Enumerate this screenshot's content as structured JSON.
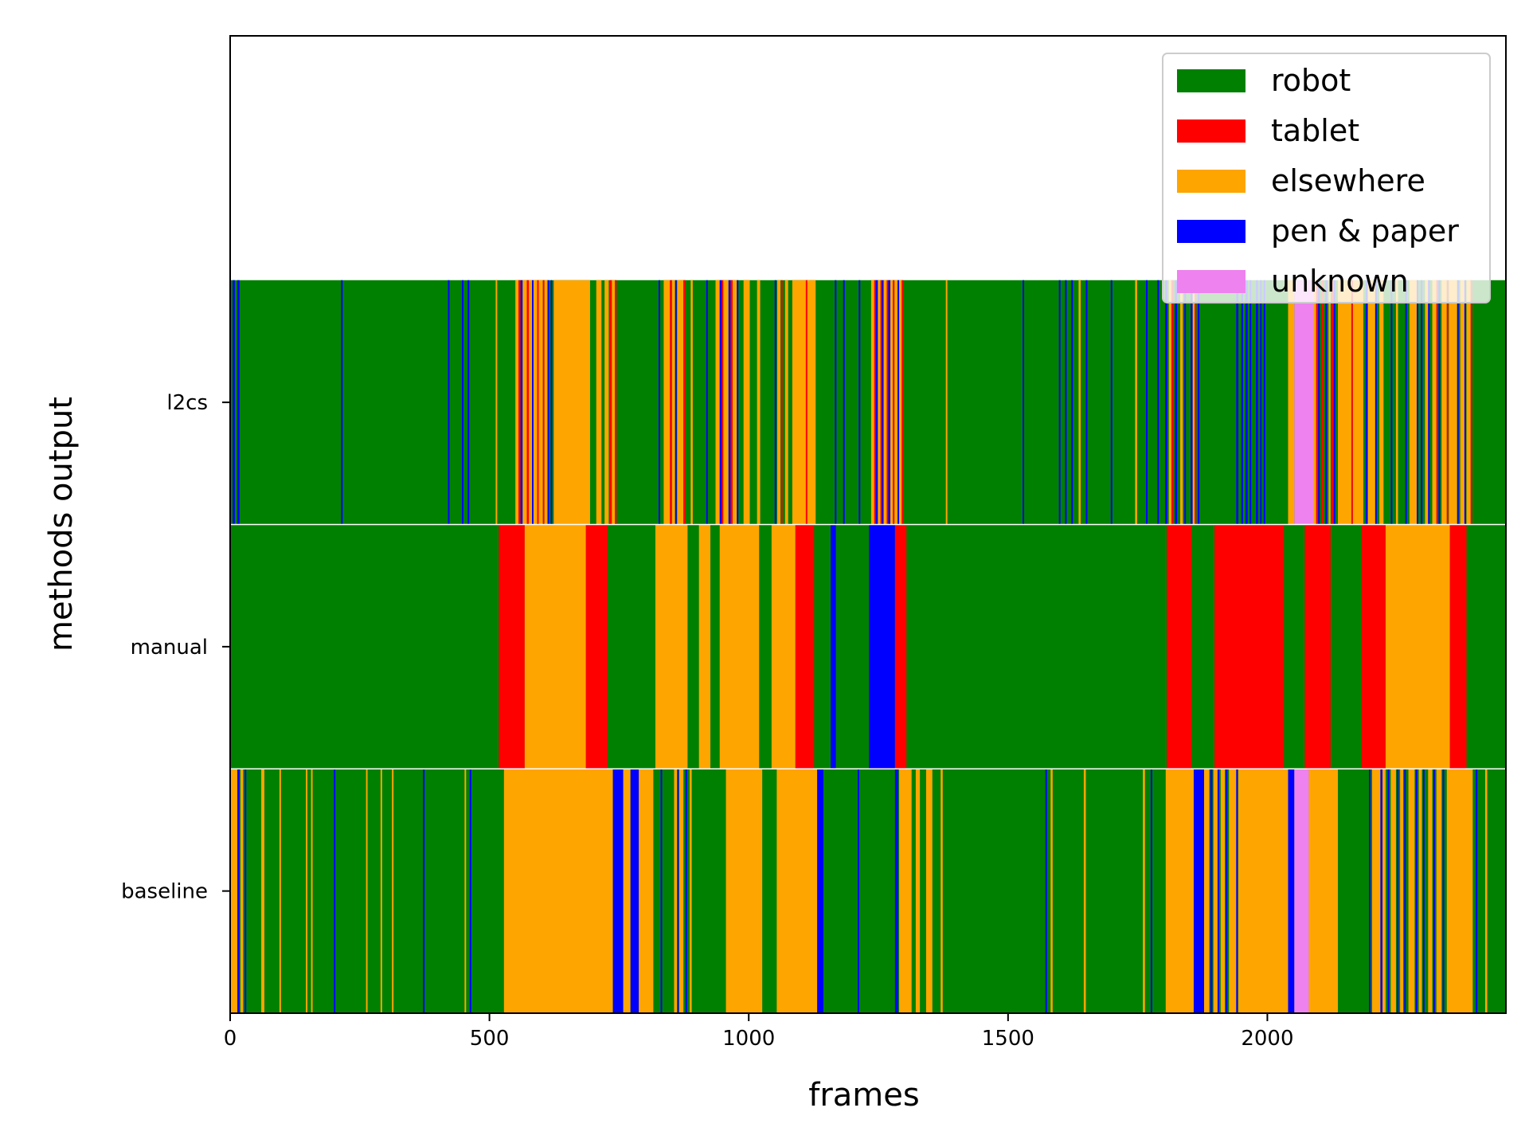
{
  "chart_data": {
    "type": "broken_barh",
    "xlabel": "frames",
    "ylabel": "methods output",
    "xlim": [
      0,
      2460
    ],
    "x_ticks": [
      0,
      500,
      1000,
      1500,
      2000
    ],
    "rows": [
      "l2cs",
      "manual",
      "baseline"
    ],
    "colors": {
      "robot": "#008000",
      "tablet": "#ff0000",
      "elsewhere": "#ffa500",
      "pen & paper": "#0000ff",
      "unknown": "#ee82ee"
    },
    "legend": {
      "position": "upper right",
      "entries": [
        "robot",
        "tablet",
        "elsewhere",
        "pen & paper",
        "unknown"
      ]
    },
    "series": [
      {
        "name": "l2cs",
        "base": "robot",
        "segments": [
          [
            "pen & paper",
            5,
            4
          ],
          [
            "pen & paper",
            14,
            4
          ],
          [
            "pen & paper",
            214,
            3
          ],
          [
            "pen & paper",
            420,
            3
          ],
          [
            "pen & paper",
            447,
            3
          ],
          [
            "pen & paper",
            458,
            3
          ],
          [
            "elsewhere",
            512,
            3
          ],
          [
            "elsewhere",
            550,
            6
          ],
          [
            "tablet",
            556,
            4
          ],
          [
            "pen & paper",
            560,
            4
          ],
          [
            "elsewhere",
            564,
            8
          ],
          [
            "tablet",
            572,
            4
          ],
          [
            "elsewhere",
            576,
            6
          ],
          [
            "pen & paper",
            582,
            3
          ],
          [
            "elsewhere",
            585,
            7
          ],
          [
            "tablet",
            592,
            3
          ],
          [
            "elsewhere",
            595,
            8
          ],
          [
            "tablet",
            603,
            3
          ],
          [
            "elsewhere",
            606,
            6
          ],
          [
            "pen & paper",
            612,
            3
          ],
          [
            "pen & paper",
            618,
            3
          ],
          [
            "elsewhere",
            624,
            70
          ],
          [
            "elsewhere",
            706,
            10
          ],
          [
            "elsewhere",
            722,
            8
          ],
          [
            "tablet",
            732,
            4
          ],
          [
            "elsewhere",
            736,
            6
          ],
          [
            "tablet",
            742,
            3
          ],
          [
            "pen & paper",
            826,
            3
          ],
          [
            "elsewhere",
            836,
            12
          ],
          [
            "tablet",
            848,
            4
          ],
          [
            "elsewhere",
            852,
            6
          ],
          [
            "pen & paper",
            858,
            3
          ],
          [
            "elsewhere",
            862,
            12
          ],
          [
            "tablet",
            874,
            4
          ],
          [
            "elsewhere",
            888,
            4
          ],
          [
            "pen & paper",
            918,
            3
          ],
          [
            "elsewhere",
            936,
            8
          ],
          [
            "pen & paper",
            944,
            4
          ],
          [
            "tablet",
            948,
            3
          ],
          [
            "elsewhere",
            951,
            10
          ],
          [
            "pen & paper",
            961,
            4
          ],
          [
            "tablet",
            965,
            4
          ],
          [
            "elsewhere",
            969,
            8
          ],
          [
            "pen & paper",
            977,
            3
          ],
          [
            "elsewhere",
            990,
            12
          ],
          [
            "elsewhere",
            1016,
            6
          ],
          [
            "pen & paper",
            1050,
            3
          ],
          [
            "elsewhere",
            1055,
            6
          ],
          [
            "tablet",
            1062,
            3
          ],
          [
            "elsewhere",
            1070,
            6
          ],
          [
            "elsewhere",
            1084,
            45
          ],
          [
            "tablet",
            1110,
            3
          ],
          [
            "pen & paper",
            1166,
            3
          ],
          [
            "pen & paper",
            1182,
            3
          ],
          [
            "pen & paper",
            1212,
            3
          ],
          [
            "elsewhere",
            1236,
            6
          ],
          [
            "tablet",
            1242,
            3
          ],
          [
            "pen & paper",
            1245,
            4
          ],
          [
            "elsewhere",
            1249,
            5
          ],
          [
            "tablet",
            1254,
            3
          ],
          [
            "pen & paper",
            1257,
            3
          ],
          [
            "elsewhere",
            1260,
            6
          ],
          [
            "tablet",
            1266,
            3
          ],
          [
            "pen & paper",
            1269,
            4
          ],
          [
            "elsewhere",
            1273,
            5
          ],
          [
            "tablet",
            1278,
            3
          ],
          [
            "elsewhere",
            1281,
            6
          ],
          [
            "pen & paper",
            1287,
            3
          ],
          [
            "elsewhere",
            1290,
            5
          ],
          [
            "tablet",
            1295,
            3
          ],
          [
            "elsewhere",
            1380,
            3
          ],
          [
            "pen & paper",
            1528,
            3
          ],
          [
            "pen & paper",
            1598,
            3
          ],
          [
            "pen & paper",
            1610,
            3
          ],
          [
            "pen & paper",
            1622,
            3
          ],
          [
            "elsewhere",
            1636,
            4
          ],
          [
            "pen & paper",
            1650,
            3
          ],
          [
            "pen & paper",
            1698,
            3
          ],
          [
            "elsewhere",
            1745,
            4
          ],
          [
            "pen & paper",
            1766,
            3
          ],
          [
            "pen & paper",
            1788,
            3
          ],
          [
            "pen & paper",
            1803,
            4
          ],
          [
            "elsewhere",
            1810,
            5
          ],
          [
            "tablet",
            1815,
            3
          ],
          [
            "pen & paper",
            1822,
            4
          ],
          [
            "elsewhere",
            1832,
            5
          ],
          [
            "pen & paper",
            1840,
            3
          ],
          [
            "pen & paper",
            1852,
            4
          ],
          [
            "elsewhere",
            1856,
            4
          ],
          [
            "tablet",
            1860,
            3
          ],
          [
            "pen & paper",
            1866,
            3
          ],
          [
            "pen & paper",
            1940,
            4
          ],
          [
            "pen & paper",
            1950,
            3
          ],
          [
            "pen & paper",
            1958,
            4
          ],
          [
            "pen & paper",
            1966,
            3
          ],
          [
            "pen & paper",
            1978,
            4
          ],
          [
            "pen & paper",
            1986,
            3
          ],
          [
            "pen & paper",
            1993,
            3
          ],
          [
            "elsewhere",
            2040,
            12
          ],
          [
            "unknown",
            2052,
            38
          ],
          [
            "elsewhere",
            2090,
            4
          ],
          [
            "tablet",
            2094,
            4
          ],
          [
            "pen & paper",
            2098,
            3
          ],
          [
            "tablet",
            2104,
            4
          ],
          [
            "pen & paper",
            2112,
            3
          ],
          [
            "elsewhere",
            2118,
            4
          ],
          [
            "tablet",
            2124,
            3
          ],
          [
            "pen & paper",
            2128,
            3
          ],
          [
            "elsewhere",
            2136,
            26
          ],
          [
            "tablet",
            2162,
            3
          ],
          [
            "elsewhere",
            2165,
            20
          ],
          [
            "pen & paper",
            2190,
            3
          ],
          [
            "elsewhere",
            2194,
            14
          ],
          [
            "pen & paper",
            2208,
            3
          ],
          [
            "elsewhere",
            2216,
            8
          ],
          [
            "pen & paper",
            2238,
            3
          ],
          [
            "elsewhere",
            2248,
            4
          ],
          [
            "pen & paper",
            2266,
            3
          ],
          [
            "elsewhere",
            2274,
            14
          ],
          [
            "pen & paper",
            2288,
            3
          ],
          [
            "pen & paper",
            2296,
            3
          ],
          [
            "elsewhere",
            2304,
            6
          ],
          [
            "pen & paper",
            2310,
            3
          ],
          [
            "elsewhere",
            2318,
            8
          ],
          [
            "tablet",
            2326,
            3
          ],
          [
            "pen & paper",
            2330,
            3
          ],
          [
            "elsewhere",
            2336,
            10
          ],
          [
            "tablet",
            2346,
            3
          ],
          [
            "elsewhere",
            2350,
            16
          ],
          [
            "pen & paper",
            2366,
            3
          ],
          [
            "elsewhere",
            2372,
            8
          ],
          [
            "pen & paper",
            2380,
            3
          ],
          [
            "elsewhere",
            2384,
            8
          ],
          [
            "tablet",
            2392,
            3
          ]
        ]
      },
      {
        "name": "manual",
        "base": "robot",
        "segments": [
          [
            "tablet",
            518,
            50
          ],
          [
            "elsewhere",
            568,
            118
          ],
          [
            "tablet",
            686,
            42
          ],
          [
            "elsewhere",
            820,
            62
          ],
          [
            "elsewhere",
            904,
            22
          ],
          [
            "elsewhere",
            944,
            76
          ],
          [
            "elsewhere",
            1044,
            46
          ],
          [
            "tablet",
            1090,
            36
          ],
          [
            "pen & paper",
            1158,
            10
          ],
          [
            "pen & paper",
            1232,
            50
          ],
          [
            "tablet",
            1282,
            22
          ],
          [
            "tablet",
            1806,
            48
          ],
          [
            "tablet",
            1898,
            134
          ],
          [
            "tablet",
            2072,
            50
          ],
          [
            "tablet",
            2182,
            46
          ],
          [
            "elsewhere",
            2228,
            124
          ],
          [
            "tablet",
            2352,
            32
          ]
        ]
      },
      {
        "name": "baseline",
        "base": "robot",
        "segments": [
          [
            "elsewhere",
            0,
            14
          ],
          [
            "pen & paper",
            14,
            4
          ],
          [
            "elsewhere",
            20,
            5
          ],
          [
            "pen & paper",
            28,
            3
          ],
          [
            "elsewhere",
            60,
            6
          ],
          [
            "elsewhere",
            95,
            3
          ],
          [
            "elsewhere",
            146,
            3
          ],
          [
            "elsewhere",
            156,
            3
          ],
          [
            "pen & paper",
            200,
            3
          ],
          [
            "elsewhere",
            262,
            3
          ],
          [
            "elsewhere",
            290,
            3
          ],
          [
            "elsewhere",
            312,
            3
          ],
          [
            "pen & paper",
            372,
            3
          ],
          [
            "elsewhere",
            452,
            3
          ],
          [
            "pen & paper",
            462,
            3
          ],
          [
            "elsewhere",
            528,
            210
          ],
          [
            "pen & paper",
            738,
            20
          ],
          [
            "elsewhere",
            758,
            14
          ],
          [
            "pen & paper",
            772,
            16
          ],
          [
            "elsewhere",
            788,
            28
          ],
          [
            "pen & paper",
            830,
            3
          ],
          [
            "elsewhere",
            856,
            6
          ],
          [
            "pen & paper",
            862,
            3
          ],
          [
            "elsewhere",
            866,
            8
          ],
          [
            "pen & paper",
            878,
            3
          ],
          [
            "elsewhere",
            886,
            4
          ],
          [
            "elsewhere",
            956,
            70
          ],
          [
            "elsewhere",
            1054,
            78
          ],
          [
            "pen & paper",
            1132,
            12
          ],
          [
            "pen & paper",
            1210,
            3
          ],
          [
            "pen & paper",
            1282,
            6
          ],
          [
            "elsewhere",
            1290,
            24
          ],
          [
            "elsewhere",
            1322,
            8
          ],
          [
            "elsewhere",
            1342,
            12
          ],
          [
            "elsewhere",
            1370,
            4
          ],
          [
            "pen & paper",
            1572,
            3
          ],
          [
            "elsewhere",
            1582,
            4
          ],
          [
            "elsewhere",
            1646,
            4
          ],
          [
            "elsewhere",
            1760,
            4
          ],
          [
            "pen & paper",
            1775,
            3
          ],
          [
            "elsewhere",
            1804,
            54
          ],
          [
            "pen & paper",
            1858,
            20
          ],
          [
            "elsewhere",
            1878,
            10
          ],
          [
            "pen & paper",
            1890,
            4
          ],
          [
            "elsewhere",
            1896,
            8
          ],
          [
            "pen & paper",
            1904,
            3
          ],
          [
            "elsewhere",
            1910,
            8
          ],
          [
            "pen & paper",
            1920,
            3
          ],
          [
            "elsewhere",
            1926,
            14
          ],
          [
            "pen & paper",
            1940,
            3
          ],
          [
            "elsewhere",
            1944,
            96
          ],
          [
            "pen & paper",
            2040,
            12
          ],
          [
            "unknown",
            2052,
            28
          ],
          [
            "elsewhere",
            2080,
            56
          ],
          [
            "pen & paper",
            2196,
            3
          ],
          [
            "elsewhere",
            2202,
            16
          ],
          [
            "pen & paper",
            2218,
            4
          ],
          [
            "elsewhere",
            2222,
            6
          ],
          [
            "pen & paper",
            2232,
            3
          ],
          [
            "elsewhere",
            2238,
            10
          ],
          [
            "pen & paper",
            2250,
            3
          ],
          [
            "elsewhere",
            2256,
            6
          ],
          [
            "pen & paper",
            2264,
            3
          ],
          [
            "elsewhere",
            2272,
            12
          ],
          [
            "pen & paper",
            2286,
            3
          ],
          [
            "elsewhere",
            2292,
            6
          ],
          [
            "pen & paper",
            2300,
            3
          ],
          [
            "elsewhere",
            2310,
            8
          ],
          [
            "pen & paper",
            2320,
            3
          ],
          [
            "elsewhere",
            2326,
            10
          ],
          [
            "pen & paper",
            2338,
            3
          ],
          [
            "elsewhere",
            2346,
            50
          ],
          [
            "pen & paper",
            2402,
            3
          ],
          [
            "elsewhere",
            2420,
            4
          ]
        ]
      }
    ]
  }
}
